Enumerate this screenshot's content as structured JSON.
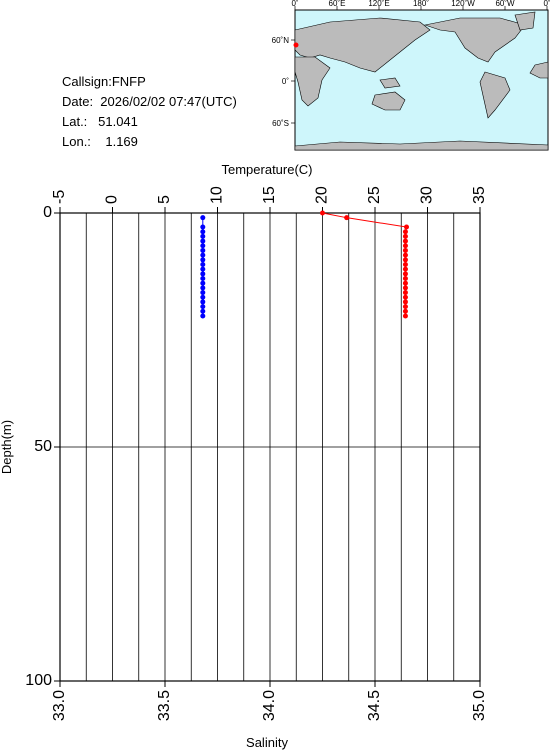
{
  "info": {
    "callsign": "Callsign:FNFP",
    "date": "Date:  2026/02/02 07:47(UTC)",
    "lat": "Lat.:   51.041",
    "lon": "Lon.:    1.169"
  },
  "map": {
    "lon_labels": [
      "0˚",
      "60˚E",
      "120˚E",
      "180˚",
      "120˚W",
      "60˚W",
      "0˚"
    ],
    "lat_labels": [
      "60˚N",
      "0˚",
      "60˚S"
    ]
  },
  "chart_data": {
    "type": "profile",
    "xlabel": "Temperature(C)",
    "x2label": "Salinity",
    "ylabel": "Depth(m)",
    "xlim": [
      -5,
      35
    ],
    "xticks": [
      -5,
      0,
      5,
      10,
      15,
      20,
      25,
      30,
      35
    ],
    "x2lim": [
      33,
      35
    ],
    "x2ticks": [
      {
        "value": 33,
        "label": "33.0"
      },
      33.5,
      {
        "value": 34,
        "label": "34.0"
      },
      34.5,
      {
        "value": 35,
        "label": "35.0"
      }
    ],
    "ylim": [
      0,
      100
    ],
    "yticks": [
      0,
      50,
      100
    ],
    "y_inverted": true,
    "grid_x": [
      -2.5,
      0,
      2.5,
      5,
      7.5,
      10,
      12.5,
      15,
      17.5,
      20,
      22.5,
      25,
      27.5,
      30,
      32.5
    ],
    "grid_y": [
      50
    ],
    "series": [
      {
        "color": "#ff0000",
        "axis": "x",
        "depth": [
          0,
          1,
          3,
          4,
          5,
          6,
          7,
          8,
          9,
          10,
          11,
          12,
          13,
          14,
          15,
          16,
          17,
          18,
          19,
          20,
          21,
          22
        ],
        "values": [
          20.0,
          22.3,
          28.0,
          27.9,
          27.9,
          27.9,
          27.9,
          27.9,
          27.9,
          27.9,
          27.9,
          27.9,
          27.9,
          27.9,
          27.9,
          27.9,
          27.9,
          27.9,
          27.9,
          27.9,
          27.9,
          27.9
        ]
      },
      {
        "color": "#0000ff",
        "axis": "x2",
        "depth": [
          1,
          3,
          4,
          5,
          6,
          7,
          8,
          9,
          10,
          11,
          12,
          13,
          14,
          15,
          16,
          17,
          18,
          19,
          20,
          21,
          22
        ],
        "values": [
          33.68,
          33.68,
          33.68,
          33.68,
          33.68,
          33.68,
          33.68,
          33.68,
          33.68,
          33.68,
          33.68,
          33.68,
          33.68,
          33.68,
          33.68,
          33.68,
          33.68,
          33.68,
          33.68,
          33.68,
          33.68
        ]
      }
    ]
  }
}
